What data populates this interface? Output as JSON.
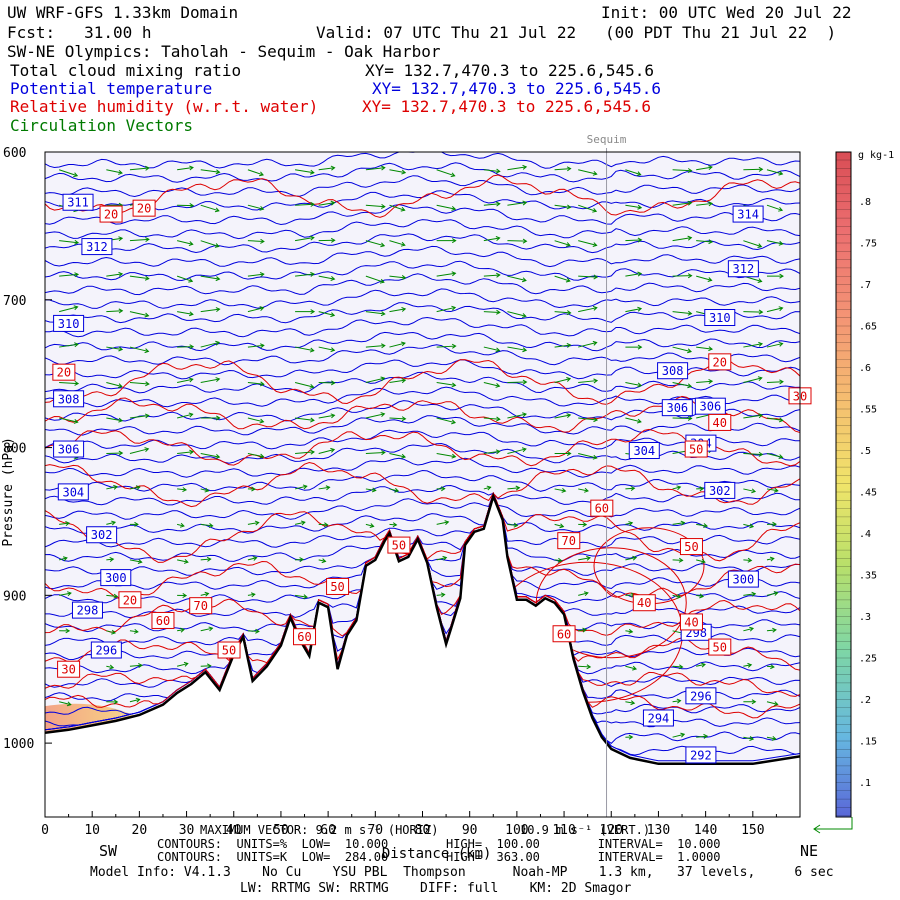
{
  "header": {
    "model": "UW WRF-GFS 1.33km Domain",
    "init": "Init: 00 UTC Wed 20 Jul 22",
    "fcst": "Fcst:   31.00 h",
    "valid": "Valid: 07 UTC Thu 21 Jul 22   (00 PDT Thu 21 Jul 22  )",
    "transect": "SW-NE Olympics: Taholah - Sequim - Oak Harbor",
    "field1": "Total cloud mixing ratio",
    "field1_xy": "XY= 132.7,470.3 to 225.6,545.6",
    "field2": "Potential temperature",
    "field2_xy": "XY= 132.7,470.3 to 225.6,545.6",
    "field3": "Relative humidity (w.r.t. water)",
    "field3_xy": "XY= 132.7,470.3 to 225.6,545.6",
    "field4": "Circulation Vectors"
  },
  "colors": {
    "theta": "#0000dd",
    "rh": "#dd0000",
    "vectors": "#008800",
    "terrain": "#000000",
    "background": "#f4f3fb"
  },
  "chart_data": {
    "type": "cross-section",
    "title": "SW-NE Olympics: Taholah - Sequim - Oak Harbor",
    "xlabel": "Distance (km)",
    "ylabel": "Pressure (hPa)",
    "xlim": [
      0,
      160
    ],
    "ylim": [
      1050,
      600
    ],
    "x_ticks": [
      "0",
      "10",
      "20",
      "30",
      "40",
      "50",
      "60",
      "70",
      "80",
      "90",
      "100",
      "110",
      "120",
      "130",
      "140",
      "150"
    ],
    "y_ticks": [
      "600",
      "700",
      "800",
      "900",
      "1000"
    ],
    "left_end_label": "SW",
    "right_end_label": "NE",
    "marker": {
      "label": "Sequim",
      "x": 119
    },
    "terrain_surface": {
      "x": [
        0,
        5,
        10,
        15,
        20,
        25,
        28,
        31,
        34,
        37,
        40,
        42,
        44,
        47,
        50,
        52,
        54,
        56,
        58,
        60,
        62,
        64,
        66,
        68,
        70,
        72,
        73,
        75,
        77,
        79,
        81,
        83,
        85,
        86,
        88,
        89,
        91,
        93,
        95,
        97,
        98,
        100,
        102,
        104,
        106,
        108,
        110,
        112,
        114,
        116,
        118,
        120,
        124,
        130,
        140,
        150,
        160
      ],
      "p_hPa": [
        993,
        991,
        988,
        985,
        981,
        974,
        966,
        960,
        952,
        964,
        940,
        928,
        958,
        948,
        934,
        915,
        930,
        941,
        905,
        908,
        950,
        927,
        917,
        880,
        876,
        863,
        858,
        877,
        874,
        862,
        878,
        908,
        933,
        923,
        902,
        866,
        857,
        855,
        833,
        849,
        874,
        903,
        903,
        907,
        902,
        905,
        913,
        943,
        965,
        983,
        996,
        1004,
        1010,
        1014,
        1014,
        1014,
        1009
      ]
    },
    "theta_contours": {
      "units": "K",
      "low": 284.0,
      "high": 363.0,
      "interval": 1.0,
      "labels": [
        {
          "text": "314",
          "x": 149,
          "p": 642
        },
        {
          "text": "312",
          "x": 148,
          "p": 679
        },
        {
          "text": "310",
          "x": 143,
          "p": 712
        },
        {
          "text": "308",
          "x": 133,
          "p": 748
        },
        {
          "text": "306",
          "x": 134,
          "p": 773
        },
        {
          "text": "306",
          "x": 141,
          "p": 772
        },
        {
          "text": "304",
          "x": 127,
          "p": 802
        },
        {
          "text": "304",
          "x": 139,
          "p": 797
        },
        {
          "text": "302",
          "x": 143,
          "p": 829
        },
        {
          "text": "300",
          "x": 148,
          "p": 889
        },
        {
          "text": "298",
          "x": 138,
          "p": 925
        },
        {
          "text": "296",
          "x": 139,
          "p": 968
        },
        {
          "text": "294",
          "x": 130,
          "p": 983
        },
        {
          "text": "292",
          "x": 139,
          "p": 1008
        },
        {
          "text": "311",
          "x": 7,
          "p": 634
        },
        {
          "text": "312",
          "x": 11,
          "p": 664
        },
        {
          "text": "310",
          "x": 5,
          "p": 716
        },
        {
          "text": "308",
          "x": 5,
          "p": 767
        },
        {
          "text": "306",
          "x": 5,
          "p": 801
        },
        {
          "text": "304",
          "x": 6,
          "p": 830
        },
        {
          "text": "302",
          "x": 12,
          "p": 859
        },
        {
          "text": "300",
          "x": 15,
          "p": 888
        },
        {
          "text": "298",
          "x": 9,
          "p": 910
        },
        {
          "text": "296",
          "x": 13,
          "p": 937
        }
      ]
    },
    "rh_contours": {
      "units": "%",
      "low": 10.0,
      "high": 100.0,
      "interval": 10.0,
      "labels": [
        {
          "text": "20",
          "x": 14,
          "p": 642
        },
        {
          "text": "20",
          "x": 21,
          "p": 638
        },
        {
          "text": "20",
          "x": 4,
          "p": 749
        },
        {
          "text": "20",
          "x": 18,
          "p": 903
        },
        {
          "text": "20",
          "x": 143,
          "p": 742
        },
        {
          "text": "30",
          "x": 160,
          "p": 765
        },
        {
          "text": "40",
          "x": 143,
          "p": 783
        },
        {
          "text": "50",
          "x": 138,
          "p": 801
        },
        {
          "text": "60",
          "x": 118,
          "p": 841
        },
        {
          "text": "70",
          "x": 111,
          "p": 863
        },
        {
          "text": "50",
          "x": 137,
          "p": 867
        },
        {
          "text": "40",
          "x": 127,
          "p": 905
        },
        {
          "text": "40",
          "x": 137,
          "p": 918
        },
        {
          "text": "50",
          "x": 143,
          "p": 935
        },
        {
          "text": "60",
          "x": 110,
          "p": 926
        },
        {
          "text": "50",
          "x": 75,
          "p": 866
        },
        {
          "text": "50",
          "x": 62,
          "p": 894
        },
        {
          "text": "70",
          "x": 33,
          "p": 907
        },
        {
          "text": "60",
          "x": 25,
          "p": 917
        },
        {
          "text": "60",
          "x": 55,
          "p": 928
        },
        {
          "text": "50",
          "x": 39,
          "p": 937
        },
        {
          "text": "30",
          "x": 5,
          "p": 950
        }
      ]
    },
    "cloud_mixing_ratio": {
      "units": "g kg-1",
      "colorbar_ticks": [
        ".8",
        ".75",
        ".7",
        ".65",
        ".6",
        ".55",
        ".5",
        ".45",
        ".4",
        ".35",
        ".3",
        ".25",
        ".2",
        ".15",
        ".1"
      ],
      "region": {
        "x_start": 0,
        "x_end": 25,
        "p_top": 975,
        "p_bottom": 1015
      }
    },
    "circulation_vectors": {
      "max_vector_label": "MAXIMUM VECTOR: 9.2 m s^-1 (HORIZ)",
      "reference_label": "10.9 m s^-1 (VERT.)"
    }
  },
  "footer": {
    "max_vector": "MAXIMUM VECTOR: 9.2 m s⁻¹ (HORIZ)",
    "vert_ref": "10.9 m s⁻¹ (VERT.)",
    "rh_contours": "CONTOURS:  UNITS=%  LOW=  10.000        HIGH=  100.00        INTERVAL=  10.000",
    "theta_contours": "CONTOURS:  UNITS=K  LOW=  284.00        HIGH=  363.00        INTERVAL=  1.0000",
    "model_info": "Model Info: V4.1.3    No Cu    YSU PBL  Thompson      Noah-MP    1.3 km,   37 levels,     6 sec",
    "physics": "LW: RRTMG SW: RRTMG    DIFF: full    KM: 2D Smagor"
  }
}
